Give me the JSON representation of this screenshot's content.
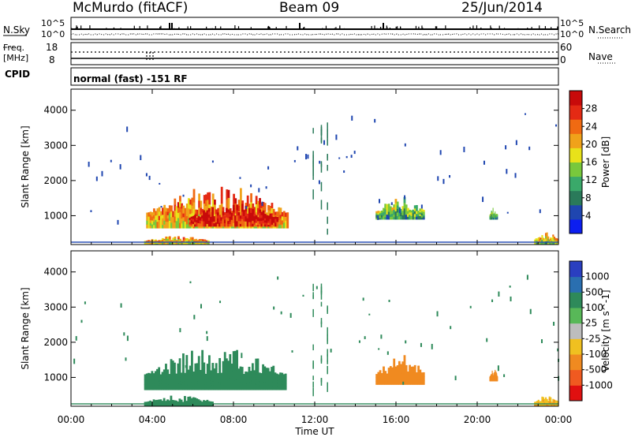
{
  "header": {
    "station": "McMurdo (fitACF)",
    "beam": "Beam 09",
    "date": "25/Jun/2014"
  },
  "panels": {
    "nsky": {
      "left_label": "N.Sky",
      "right_label": "N.Search",
      "ticks_left": [
        "10^5",
        "10^0"
      ],
      "ticks_right": [
        "10^5",
        "10^0"
      ]
    },
    "freq": {
      "left_label_1": "Freq.",
      "left_label_2": "[MHz]",
      "right_label": "Nave",
      "ticks_left": [
        "18",
        "8"
      ],
      "ticks_right": [
        "60",
        "0"
      ]
    },
    "cpid": {
      "label": "CPID",
      "mode": "normal (fast) -151 RF"
    }
  },
  "colors": {
    "power_scale": [
      "#0c1ef0",
      "#1f46b0",
      "#2a7a5a",
      "#3aa96a",
      "#78c83c",
      "#e8e21a",
      "#f0a21a",
      "#f06a12",
      "#e42a14",
      "#c80a0a"
    ],
    "velocity_scale": [
      "#2a3fc0",
      "#2a6fb0",
      "#2e8a5a",
      "#58b858",
      "#bdbdbd",
      "#f0c020",
      "#f08a20",
      "#f05a20",
      "#e01010"
    ]
  },
  "chart_data": [
    {
      "type": "heatmap",
      "name": "power",
      "ylabel": "Slant Range [km]",
      "xlabel": "Time UT",
      "x_ticks": [
        "00:00",
        "04:00",
        "08:00",
        "12:00",
        "16:00",
        "20:00",
        "00:00"
      ],
      "y_ticks": [
        1000,
        2000,
        3000,
        4000
      ],
      "ylim": [
        180,
        4600
      ],
      "xlim_hours": [
        0,
        24
      ],
      "colorbar": {
        "label": "Power [dB]",
        "ticks": [
          4,
          8,
          12,
          16,
          20,
          24,
          28
        ],
        "range": [
          0,
          32
        ]
      },
      "echo_regions": [
        {
          "t_start": 3.7,
          "t_end": 10.7,
          "r_low": 650,
          "r_high": 1900,
          "value": 18
        },
        {
          "t_start": 5.8,
          "t_end": 10.2,
          "r_low": 700,
          "r_high": 1400,
          "value": 26
        },
        {
          "t_start": 3.6,
          "t_end": 6.8,
          "r_low": 200,
          "r_high": 450,
          "value": 16
        },
        {
          "t_start": 15.0,
          "t_end": 17.4,
          "r_low": 900,
          "r_high": 1550,
          "value": 10
        },
        {
          "t_start": 20.6,
          "t_end": 21.0,
          "r_low": 900,
          "r_high": 1250,
          "value": 8
        },
        {
          "t_start": 22.8,
          "t_end": 24.0,
          "r_low": 200,
          "r_high": 550,
          "value": 14
        }
      ]
    },
    {
      "type": "heatmap",
      "name": "velocity",
      "ylabel": "Slant Range [km]",
      "xlabel": "Time UT",
      "x_ticks": [
        "00:00",
        "04:00",
        "08:00",
        "12:00",
        "16:00",
        "20:00",
        "00:00"
      ],
      "y_ticks": [
        1000,
        2000,
        3000,
        4000
      ],
      "ylim": [
        180,
        4600
      ],
      "xlim_hours": [
        0,
        24
      ],
      "colorbar": {
        "label": "Velocity [m s^-1]",
        "ticks": [
          1000,
          500,
          100,
          25,
          -25,
          -100,
          -500,
          -1000
        ]
      },
      "echo_regions": [
        {
          "t_start": 3.6,
          "t_end": 10.6,
          "r_low": 650,
          "r_high": 1900,
          "value": 150
        },
        {
          "t_start": 3.6,
          "t_end": 7.0,
          "r_low": 200,
          "r_high": 500,
          "value": 150
        },
        {
          "t_start": 15.0,
          "t_end": 17.4,
          "r_low": 800,
          "r_high": 1650,
          "value": -150
        },
        {
          "t_start": 20.6,
          "t_end": 21.0,
          "r_low": 900,
          "r_high": 1250,
          "value": -150
        },
        {
          "t_start": 22.8,
          "t_end": 24.0,
          "r_low": 200,
          "r_high": 500,
          "value": -80
        }
      ]
    }
  ]
}
